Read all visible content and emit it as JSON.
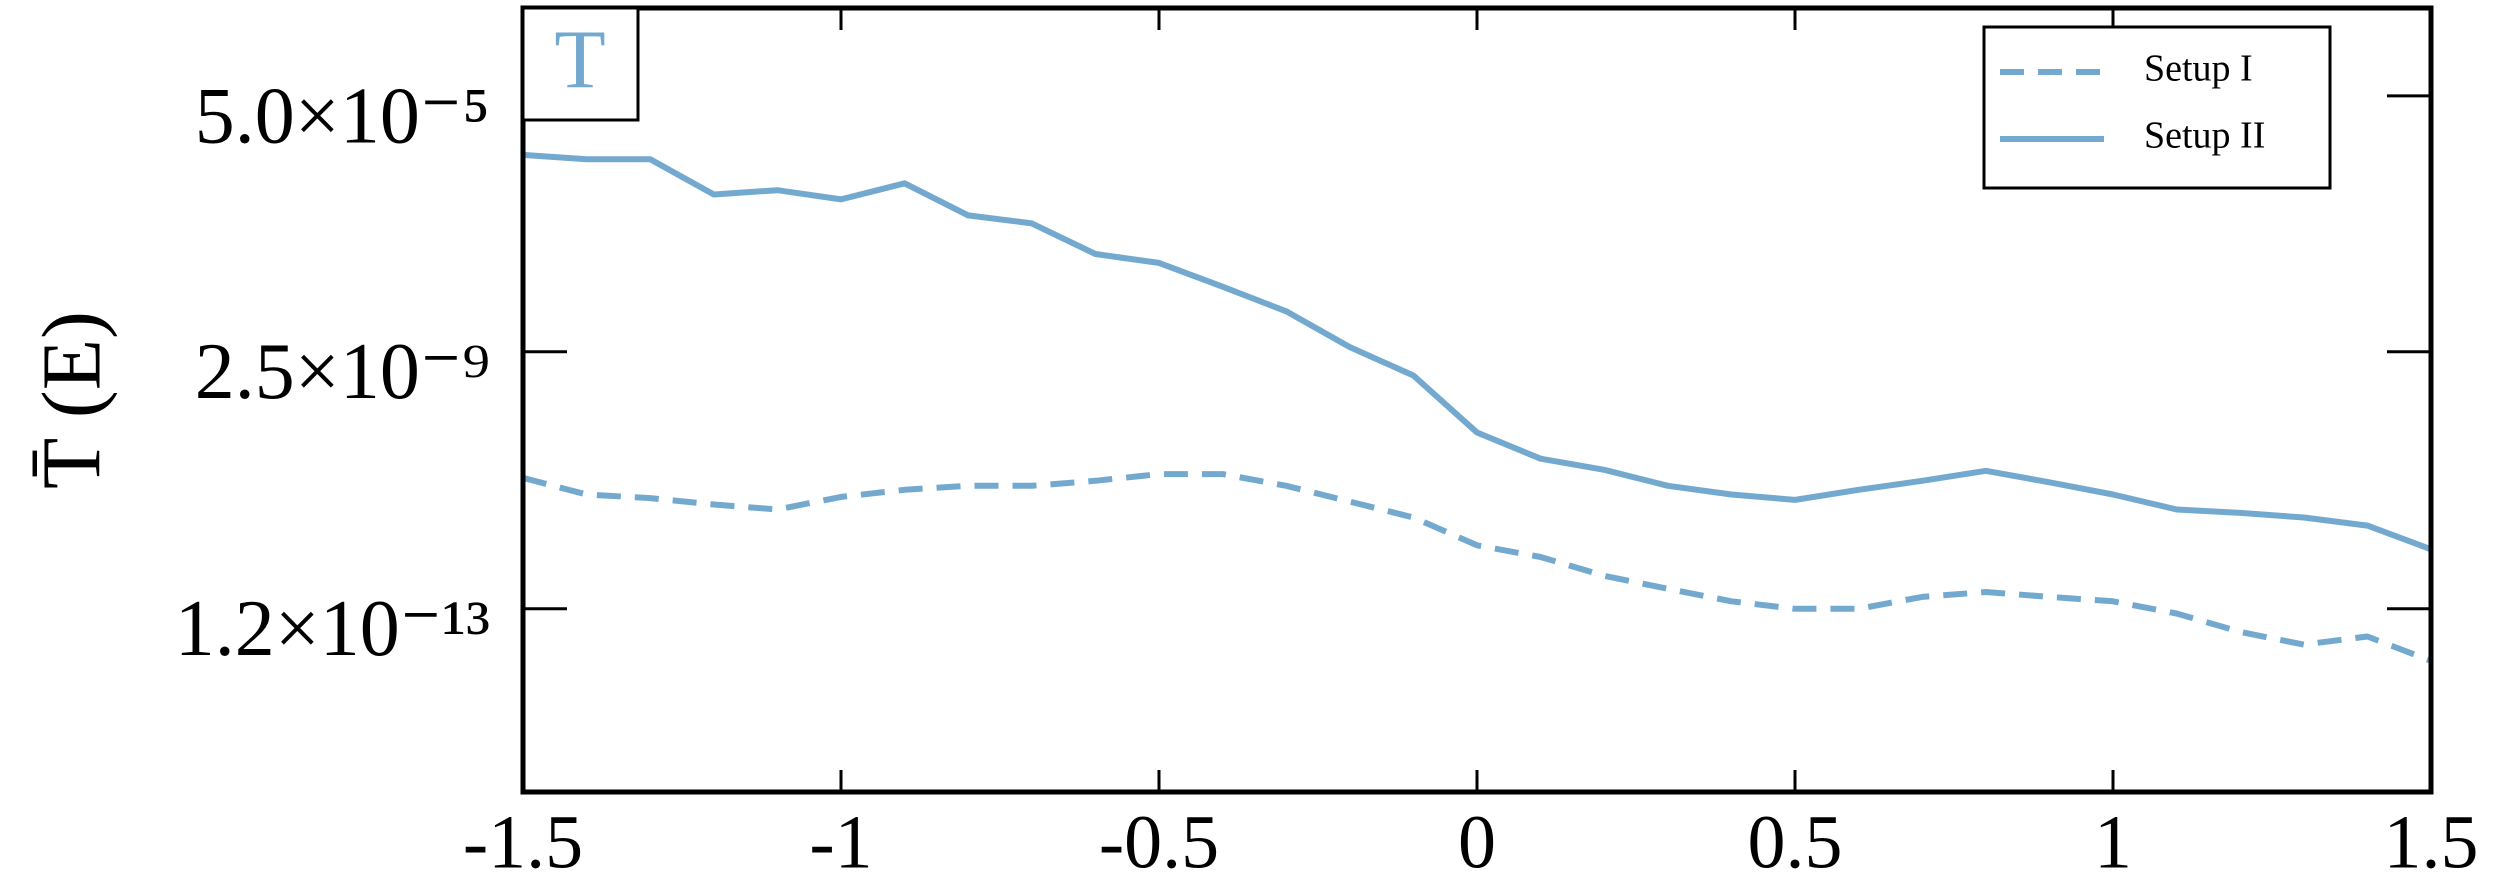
{
  "chart_data": {
    "type": "line",
    "ylabel": "T̄ (E)",
    "annotation": "T",
    "annotation_color": "#74a9cf",
    "x": [
      -1.5,
      -1.4,
      -1.3,
      -1.2,
      -1.1,
      -1.0,
      -0.9,
      -0.8,
      -0.7,
      -0.6,
      -0.5,
      -0.4,
      -0.3,
      -0.2,
      -0.1,
      0.0,
      0.1,
      0.2,
      0.3,
      0.4,
      0.5,
      0.6,
      0.7,
      0.8,
      0.9,
      1.0,
      1.1,
      1.2,
      1.3,
      1.4,
      1.5
    ],
    "series": [
      {
        "name": "Setup I",
        "color": "#74a9cf",
        "style": "dashed",
        "values": [
          1.9e-11,
          1e-11,
          8.7e-12,
          6.8e-12,
          5.6e-12,
          9.1e-12,
          1.2e-11,
          1.4e-11,
          1.4e-11,
          1.7e-11,
          2.2e-11,
          2.2e-11,
          1.4e-11,
          7.6e-12,
          4.1e-12,
          1.4e-12,
          8.9e-13,
          4.3e-13,
          2.6e-13,
          1.6e-13,
          1.2e-13,
          1.2e-13,
          1.9e-13,
          2.3e-13,
          1.9e-13,
          1.6e-13,
          1e-13,
          4.9e-14,
          3e-14,
          4.1e-14,
          1.6e-14
        ]
      },
      {
        "name": "Setup II",
        "color": "#74a9cf",
        "style": "solid",
        "values": [
          5.1e-06,
          4.3e-06,
          4.3e-06,
          1.1e-06,
          1.3e-06,
          9.1e-07,
          1.7e-06,
          4.9e-07,
          3.6e-07,
          1.1e-07,
          7.8e-08,
          3.1e-08,
          1.2e-08,
          3e-09,
          1e-09,
          1.1e-10,
          4e-11,
          2.6e-11,
          1.4e-11,
          1e-11,
          8.1e-12,
          1.2e-11,
          1.7e-11,
          2.5e-11,
          1.6e-11,
          1e-11,
          5.6e-12,
          4.9e-12,
          4.1e-12,
          3e-12,
          1.2e-12
        ]
      }
    ],
    "xlim": [
      -1.5,
      1.5
    ],
    "xticks": [
      -1.5,
      -1,
      -0.5,
      0,
      0.5,
      1,
      1.5
    ],
    "ylim": [
      1e-16,
      0.0015
    ],
    "yscale": "log",
    "yticks": [
      {
        "value": 5e-05,
        "label": "5.0×10⁻⁵"
      },
      {
        "value": 2.5e-09,
        "label": "2.5×10⁻⁹"
      },
      {
        "value": 1.2e-13,
        "label": "1.2×10⁻¹³"
      }
    ],
    "legend": "upper right"
  }
}
